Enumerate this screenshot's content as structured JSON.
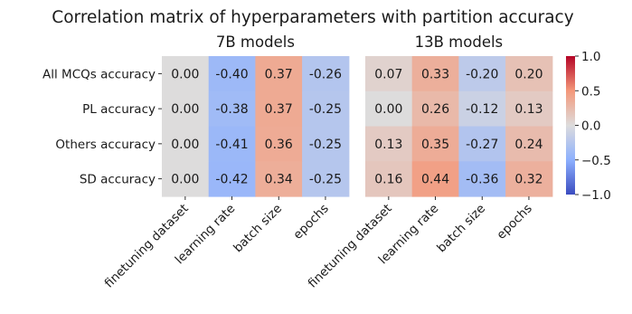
{
  "chart_data": {
    "type": "heatmap",
    "title": "Correlation matrix of hyperparameters with partition accuracy",
    "rows": [
      "All MCQs accuracy",
      "PL accuracy",
      "Others accuracy",
      "SD accuracy"
    ],
    "columns": [
      "finetuning dataset",
      "learning rate",
      "batch size",
      "epochs"
    ],
    "panels": [
      {
        "title": "7B models",
        "values": [
          [
            0.0,
            -0.4,
            0.37,
            -0.26
          ],
          [
            0.0,
            -0.38,
            0.37,
            -0.25
          ],
          [
            0.0,
            -0.41,
            0.36,
            -0.25
          ],
          [
            0.0,
            -0.42,
            0.34,
            -0.25
          ]
        ],
        "labels": [
          [
            "0.00",
            "-0.40",
            "0.37",
            "-0.26"
          ],
          [
            "0.00",
            "-0.38",
            "0.37",
            "-0.25"
          ],
          [
            "0.00",
            "-0.41",
            "0.36",
            "-0.25"
          ],
          [
            "0.00",
            "-0.42",
            "0.34",
            "-0.25"
          ]
        ]
      },
      {
        "title": "13B models",
        "values": [
          [
            0.07,
            0.33,
            -0.2,
            0.2
          ],
          [
            0.0,
            0.26,
            -0.12,
            0.13
          ],
          [
            0.13,
            0.35,
            -0.27,
            0.24
          ],
          [
            0.16,
            0.44,
            -0.36,
            0.32
          ]
        ],
        "labels": [
          [
            "0.07",
            "0.33",
            "-0.20",
            "0.20"
          ],
          [
            "0.00",
            "0.26",
            "-0.12",
            "0.13"
          ],
          [
            "0.13",
            "0.35",
            "-0.27",
            "0.24"
          ],
          [
            "0.16",
            "0.44",
            "-0.36",
            "0.32"
          ]
        ]
      }
    ],
    "colorbar": {
      "colormap": "coolwarm",
      "range": [
        -1.0,
        1.0
      ],
      "ticks": [
        1.0,
        0.5,
        0.0,
        -0.5,
        -1.0
      ],
      "tick_labels": [
        "1.0",
        "0.5",
        "0.0",
        "−0.5",
        "−1.0"
      ]
    }
  }
}
